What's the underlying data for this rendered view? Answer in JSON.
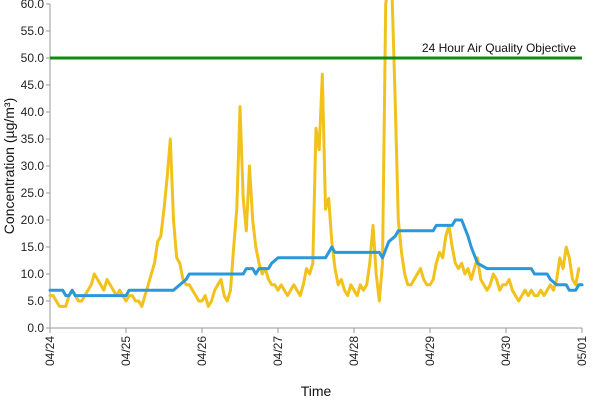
{
  "chart_data": {
    "type": "line",
    "xlabel": "Time",
    "ylabel": "Concentration (µg/m³)",
    "ylim": [
      0,
      60
    ],
    "y_ticks": [
      "0.0",
      "5.0",
      "10.0",
      "15.0",
      "20.0",
      "25.0",
      "30.0",
      "35.0",
      "40.0",
      "45.0",
      "50.0",
      "55.0",
      "60.0"
    ],
    "x_ticks": [
      "04/24",
      "04/25",
      "04/26",
      "04/27",
      "04/28",
      "04/29",
      "04/30",
      "05/01"
    ],
    "xlim_days": [
      0,
      7
    ],
    "grid": false,
    "legend": "none",
    "objective": {
      "label": "24 Hour Air Quality Objective",
      "value": 50,
      "color": "#138a13"
    },
    "series": [
      {
        "color": "#f2c21c",
        "points": [
          [
            "04/24 00:00",
            6
          ],
          [
            "04/24 01:00",
            6
          ],
          [
            "04/24 02:00",
            5
          ],
          [
            "04/24 03:00",
            4
          ],
          [
            "04/24 04:00",
            4
          ],
          [
            "04/24 05:00",
            4
          ],
          [
            "04/24 06:00",
            6
          ],
          [
            "04/24 07:00",
            7
          ],
          [
            "04/24 08:00",
            6
          ],
          [
            "04/24 09:00",
            5
          ],
          [
            "04/24 10:00",
            5
          ],
          [
            "04/24 11:00",
            6
          ],
          [
            "04/24 12:00",
            7
          ],
          [
            "04/24 13:00",
            8
          ],
          [
            "04/24 14:00",
            10
          ],
          [
            "04/24 15:00",
            9
          ],
          [
            "04/24 16:00",
            8
          ],
          [
            "04/24 17:00",
            7
          ],
          [
            "04/24 18:00",
            9
          ],
          [
            "04/24 19:00",
            8
          ],
          [
            "04/24 20:00",
            7
          ],
          [
            "04/24 21:00",
            6
          ],
          [
            "04/24 22:00",
            7
          ],
          [
            "04/24 23:00",
            6
          ],
          [
            "04/25 00:00",
            5
          ],
          [
            "04/25 01:00",
            6
          ],
          [
            "04/25 02:00",
            6
          ],
          [
            "04/25 03:00",
            5
          ],
          [
            "04/25 04:00",
            5
          ],
          [
            "04/25 05:00",
            4
          ],
          [
            "04/25 06:00",
            6
          ],
          [
            "04/25 07:00",
            8
          ],
          [
            "04/25 08:00",
            10
          ],
          [
            "04/25 09:00",
            12
          ],
          [
            "04/25 10:00",
            16
          ],
          [
            "04/25 11:00",
            17
          ],
          [
            "04/25 12:00",
            22
          ],
          [
            "04/25 13:00",
            28
          ],
          [
            "04/25 14:00",
            35
          ],
          [
            "04/25 15:00",
            20
          ],
          [
            "04/25 16:00",
            13
          ],
          [
            "04/25 17:00",
            12
          ],
          [
            "04/25 18:00",
            9
          ],
          [
            "04/25 19:00",
            8
          ],
          [
            "04/25 20:00",
            8
          ],
          [
            "04/25 21:00",
            7
          ],
          [
            "04/25 22:00",
            6
          ],
          [
            "04/25 23:00",
            5
          ],
          [
            "04/26 00:00",
            5
          ],
          [
            "04/26 01:00",
            6
          ],
          [
            "04/26 02:00",
            4
          ],
          [
            "04/26 03:00",
            5
          ],
          [
            "04/26 04:00",
            7
          ],
          [
            "04/26 05:00",
            8
          ],
          [
            "04/26 06:00",
            9
          ],
          [
            "04/26 07:00",
            6
          ],
          [
            "04/26 08:00",
            5
          ],
          [
            "04/26 09:00",
            7
          ],
          [
            "04/26 10:00",
            15
          ],
          [
            "04/26 11:00",
            22
          ],
          [
            "04/26 12:00",
            41
          ],
          [
            "04/26 13:00",
            24
          ],
          [
            "04/26 14:00",
            18
          ],
          [
            "04/26 15:00",
            30
          ],
          [
            "04/26 16:00",
            20
          ],
          [
            "04/26 17:00",
            15
          ],
          [
            "04/26 18:00",
            12
          ],
          [
            "04/26 19:00",
            10
          ],
          [
            "04/26 20:00",
            11
          ],
          [
            "04/26 21:00",
            9
          ],
          [
            "04/26 22:00",
            8
          ],
          [
            "04/26 23:00",
            8
          ],
          [
            "04/27 00:00",
            7
          ],
          [
            "04/27 01:00",
            8
          ],
          [
            "04/27 02:00",
            7
          ],
          [
            "04/27 03:00",
            6
          ],
          [
            "04/27 04:00",
            7
          ],
          [
            "04/27 05:00",
            8
          ],
          [
            "04/27 06:00",
            7
          ],
          [
            "04/27 07:00",
            6
          ],
          [
            "04/27 08:00",
            8
          ],
          [
            "04/27 09:00",
            11
          ],
          [
            "04/27 10:00",
            10
          ],
          [
            "04/27 11:00",
            12
          ],
          [
            "04/27 12:00",
            37
          ],
          [
            "04/27 13:00",
            33
          ],
          [
            "04/27 14:00",
            47
          ],
          [
            "04/27 15:00",
            22
          ],
          [
            "04/27 16:00",
            24
          ],
          [
            "04/27 17:00",
            16
          ],
          [
            "04/27 18:00",
            11
          ],
          [
            "04/27 19:00",
            8
          ],
          [
            "04/27 20:00",
            9
          ],
          [
            "04/27 21:00",
            7
          ],
          [
            "04/27 22:00",
            6
          ],
          [
            "04/27 23:00",
            8
          ],
          [
            "04/28 00:00",
            7
          ],
          [
            "04/28 01:00",
            6
          ],
          [
            "04/28 02:00",
            8
          ],
          [
            "04/28 03:00",
            7
          ],
          [
            "04/28 04:00",
            8
          ],
          [
            "04/28 05:00",
            12
          ],
          [
            "04/28 06:00",
            19
          ],
          [
            "04/28 07:00",
            10
          ],
          [
            "04/28 08:00",
            5
          ],
          [
            "04/28 09:00",
            12
          ],
          [
            "04/28 10:00",
            60
          ],
          [
            "04/28 11:00",
            64
          ],
          [
            "04/28 12:00",
            62
          ],
          [
            "04/28 13:00",
            42
          ],
          [
            "04/28 14:00",
            20
          ],
          [
            "04/28 15:00",
            14
          ],
          [
            "04/28 16:00",
            10
          ],
          [
            "04/28 17:00",
            8
          ],
          [
            "04/28 18:00",
            8
          ],
          [
            "04/28 19:00",
            9
          ],
          [
            "04/28 20:00",
            10
          ],
          [
            "04/28 21:00",
            11
          ],
          [
            "04/28 22:00",
            9
          ],
          [
            "04/28 23:00",
            8
          ],
          [
            "04/29 00:00",
            8
          ],
          [
            "04/29 01:00",
            9
          ],
          [
            "04/29 02:00",
            12
          ],
          [
            "04/29 03:00",
            14
          ],
          [
            "04/29 04:00",
            13
          ],
          [
            "04/29 05:00",
            17
          ],
          [
            "04/29 06:00",
            19
          ],
          [
            "04/29 07:00",
            15
          ],
          [
            "04/29 08:00",
            12
          ],
          [
            "04/29 09:00",
            11
          ],
          [
            "04/29 10:00",
            12
          ],
          [
            "04/29 11:00",
            10
          ],
          [
            "04/29 12:00",
            11
          ],
          [
            "04/29 13:00",
            9
          ],
          [
            "04/29 14:00",
            11
          ],
          [
            "04/29 15:00",
            13
          ],
          [
            "04/29 16:00",
            9
          ],
          [
            "04/29 17:00",
            8
          ],
          [
            "04/29 18:00",
            7
          ],
          [
            "04/29 19:00",
            8
          ],
          [
            "04/29 20:00",
            10
          ],
          [
            "04/29 21:00",
            9
          ],
          [
            "04/29 22:00",
            7
          ],
          [
            "04/29 23:00",
            8
          ],
          [
            "04/30 00:00",
            8
          ],
          [
            "04/30 01:00",
            9
          ],
          [
            "04/30 02:00",
            7
          ],
          [
            "04/30 03:00",
            6
          ],
          [
            "04/30 04:00",
            5
          ],
          [
            "04/30 05:00",
            6
          ],
          [
            "04/30 06:00",
            7
          ],
          [
            "04/30 07:00",
            6
          ],
          [
            "04/30 08:00",
            7
          ],
          [
            "04/30 09:00",
            6
          ],
          [
            "04/30 10:00",
            6
          ],
          [
            "04/30 11:00",
            7
          ],
          [
            "04/30 12:00",
            6
          ],
          [
            "04/30 13:00",
            7
          ],
          [
            "04/30 14:00",
            8
          ],
          [
            "04/30 15:00",
            7
          ],
          [
            "04/30 16:00",
            9
          ],
          [
            "04/30 17:00",
            13
          ],
          [
            "04/30 18:00",
            11
          ],
          [
            "04/30 19:00",
            15
          ],
          [
            "04/30 20:00",
            13
          ],
          [
            "04/30 21:00",
            9
          ],
          [
            "04/30 22:00",
            8
          ],
          [
            "04/30 23:00",
            11
          ]
        ]
      },
      {
        "color": "#2b98dc",
        "points": [
          [
            "04/24 00:00",
            7
          ],
          [
            "04/24 04:00",
            7
          ],
          [
            "04/24 05:00",
            6
          ],
          [
            "04/24 06:00",
            6
          ],
          [
            "04/24 07:00",
            7
          ],
          [
            "04/24 08:00",
            6
          ],
          [
            "04/25 00:00",
            6
          ],
          [
            "04/25 01:00",
            7
          ],
          [
            "04/25 15:00",
            7
          ],
          [
            "04/25 17:00",
            8
          ],
          [
            "04/25 19:00",
            9
          ],
          [
            "04/25 20:00",
            10
          ],
          [
            "04/26 13:00",
            10
          ],
          [
            "04/26 14:00",
            11
          ],
          [
            "04/26 16:00",
            11
          ],
          [
            "04/26 17:00",
            10
          ],
          [
            "04/26 18:00",
            11
          ],
          [
            "04/26 21:00",
            11
          ],
          [
            "04/26 22:00",
            12
          ],
          [
            "04/27 00:00",
            13
          ],
          [
            "04/27 15:00",
            13
          ],
          [
            "04/27 16:00",
            14
          ],
          [
            "04/27 17:00",
            15
          ],
          [
            "04/27 18:00",
            14
          ],
          [
            "04/28 08:00",
            14
          ],
          [
            "04/28 09:00",
            13
          ],
          [
            "04/28 11:00",
            16
          ],
          [
            "04/28 13:00",
            17
          ],
          [
            "04/28 14:00",
            18
          ],
          [
            "04/29 01:00",
            18
          ],
          [
            "04/29 02:00",
            19
          ],
          [
            "04/29 07:00",
            19
          ],
          [
            "04/29 08:00",
            20
          ],
          [
            "04/29 10:00",
            20
          ],
          [
            "04/29 12:00",
            17
          ],
          [
            "04/29 13:00",
            15
          ],
          [
            "04/29 15:00",
            12
          ],
          [
            "04/29 18:00",
            11
          ],
          [
            "04/30 08:00",
            11
          ],
          [
            "04/30 09:00",
            10
          ],
          [
            "04/30 13:00",
            10
          ],
          [
            "04/30 14:00",
            9
          ],
          [
            "04/30 16:00",
            8
          ],
          [
            "04/30 19:00",
            8
          ],
          [
            "04/30 20:00",
            7
          ],
          [
            "04/30 22:00",
            7
          ],
          [
            "04/30 23:00",
            8
          ],
          [
            "05/01 00:00",
            8
          ]
        ]
      }
    ]
  }
}
